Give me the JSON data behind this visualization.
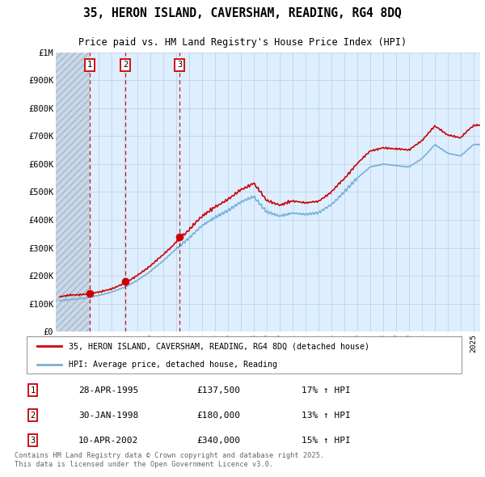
{
  "title": "35, HERON ISLAND, CAVERSHAM, READING, RG4 8DQ",
  "subtitle": "Price paid vs. HM Land Registry's House Price Index (HPI)",
  "legend_line1": "35, HERON ISLAND, CAVERSHAM, READING, RG4 8DQ (detached house)",
  "legend_line2": "HPI: Average price, detached house, Reading",
  "transactions": [
    {
      "num": 1,
      "date": "28-APR-1995",
      "date_val": 1995.32,
      "price": 137500,
      "pct": "17%",
      "dir": "↑"
    },
    {
      "num": 2,
      "date": "30-JAN-1998",
      "date_val": 1998.08,
      "price": 180000,
      "pct": "13%",
      "dir": "↑"
    },
    {
      "num": 3,
      "date": "10-APR-2002",
      "date_val": 2002.27,
      "price": 340000,
      "pct": "15%",
      "dir": "↑"
    }
  ],
  "price_paid_color": "#cc0000",
  "hpi_line_color": "#7ab0d4",
  "vline_color": "#cc0000",
  "plot_bg_color": "#ddeeff",
  "grid_color": "#b8cfe0",
  "ylim": [
    0,
    1000000
  ],
  "ytick_vals": [
    0,
    100000,
    200000,
    300000,
    400000,
    500000,
    600000,
    700000,
    800000,
    900000,
    1000000
  ],
  "ytick_labels": [
    "£0",
    "£100K",
    "£200K",
    "£300K",
    "£400K",
    "£500K",
    "£600K",
    "£700K",
    "£800K",
    "£900K",
    "£1M"
  ],
  "xlim_start": 1992.7,
  "xlim_end": 2025.5,
  "xticks": [
    1993,
    1994,
    1995,
    1996,
    1997,
    1998,
    1999,
    2000,
    2001,
    2002,
    2003,
    2004,
    2005,
    2006,
    2007,
    2008,
    2009,
    2010,
    2011,
    2012,
    2013,
    2014,
    2015,
    2016,
    2017,
    2018,
    2019,
    2020,
    2021,
    2022,
    2023,
    2024,
    2025
  ],
  "hatch_end": 1995.32,
  "footer": "Contains HM Land Registry data © Crown copyright and database right 2025.\nThis data is licensed under the Open Government Licence v3.0."
}
